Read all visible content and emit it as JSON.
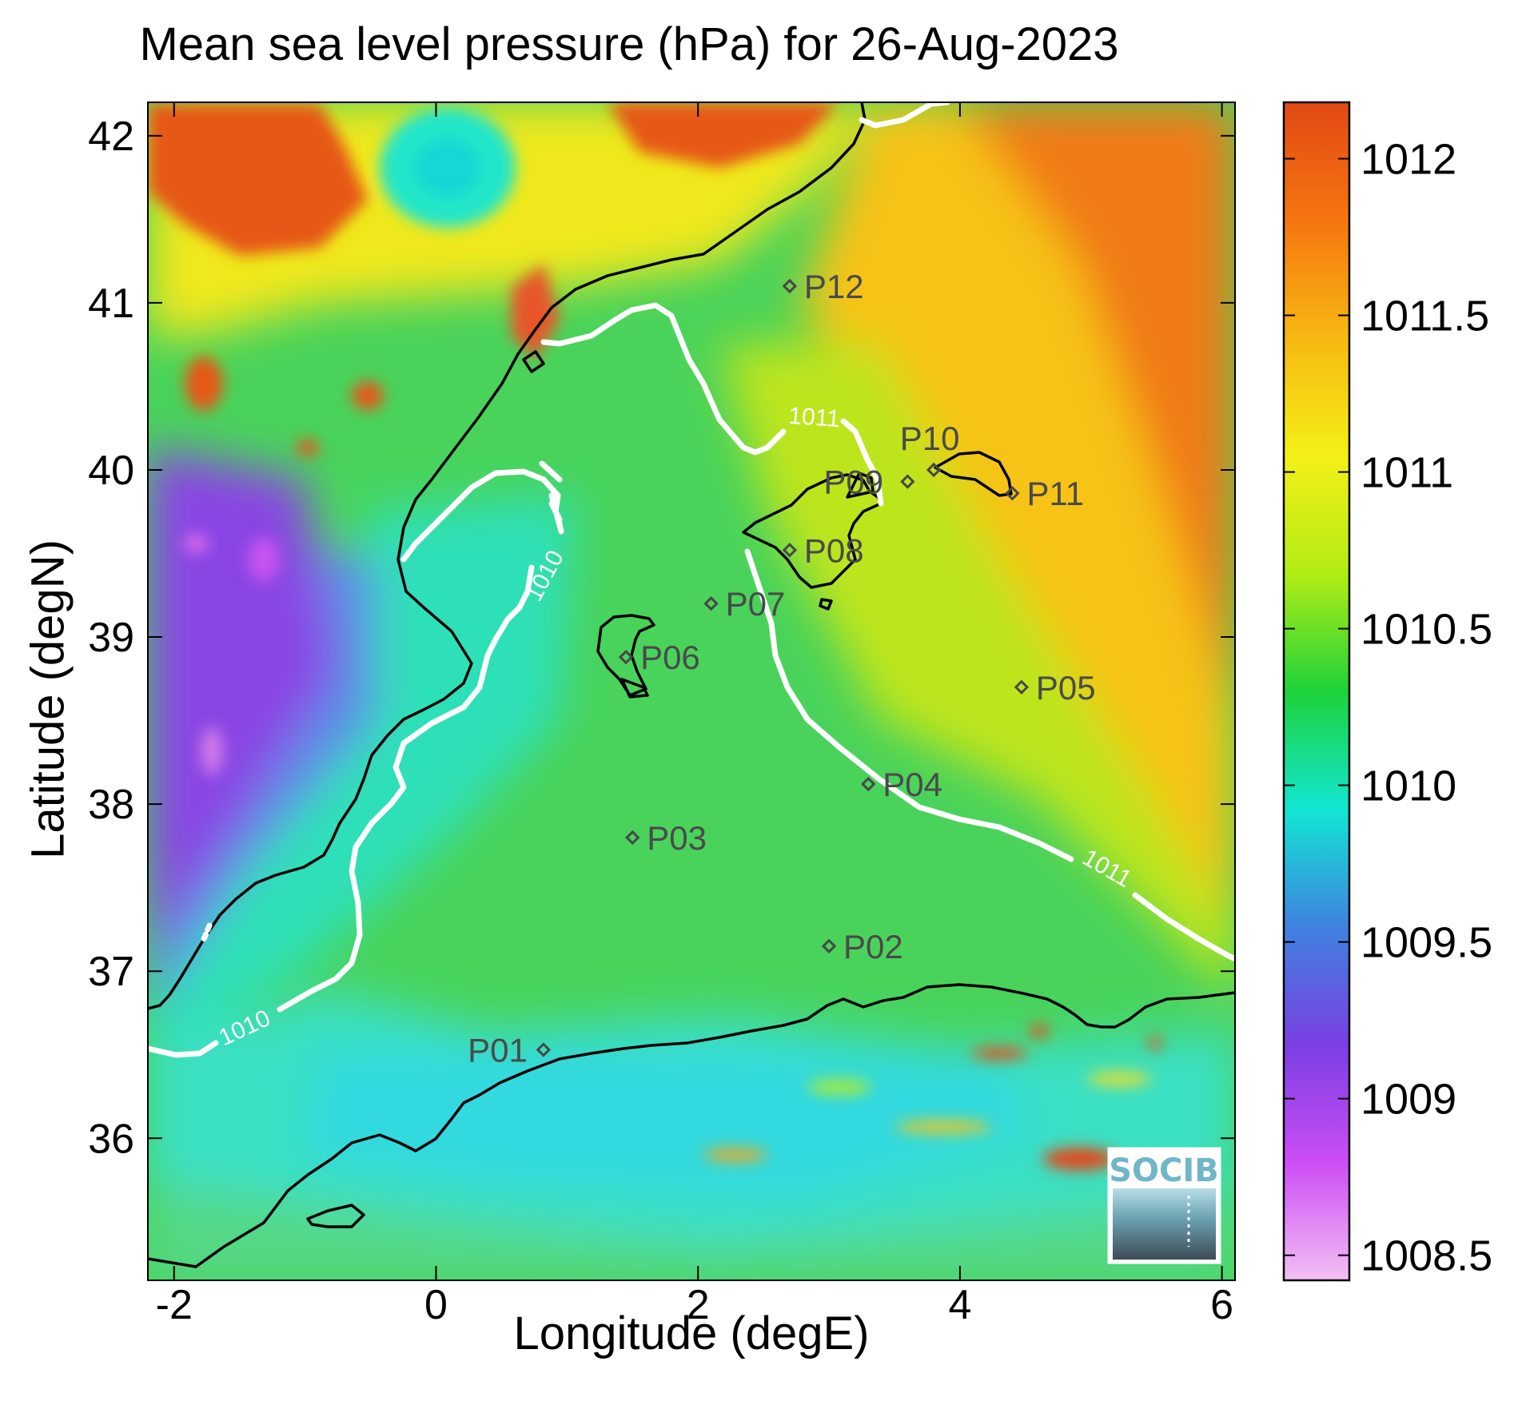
{
  "map": {
    "title": "Mean sea level pressure (hPa) for 26-Aug-2023",
    "xlabel": "Longitude (degE)",
    "ylabel": "Latitude (degN)",
    "lon_range": [
      -2.2,
      6.1
    ],
    "lat_range": [
      35.15,
      42.2
    ],
    "lon_ticks": [
      "-2",
      "0",
      "2",
      "4",
      "6"
    ],
    "lat_ticks": [
      "36",
      "37",
      "38",
      "39",
      "40",
      "41",
      "42"
    ],
    "colorbar": {
      "range": [
        1008.42,
        1012.18
      ],
      "tick_labels": [
        "1008.5",
        "1009",
        "1009.5",
        "1010",
        "1010.5",
        "1011",
        "1011.5",
        "1012"
      ],
      "colors": [
        "#f3c0f3",
        "#cc4df5",
        "#7a3fe3",
        "#3f82e0",
        "#12e6d2",
        "#1ed23a",
        "#b2ec16",
        "#f4f017",
        "#f7b812",
        "#f57510",
        "#e14a14"
      ]
    },
    "contours": [
      {
        "level": "1010",
        "color": "#ffffff"
      },
      {
        "level": "1011",
        "color": "#ffffff"
      }
    ],
    "points": [
      {
        "label": "P01",
        "lon": 0.82,
        "lat": 36.53
      },
      {
        "label": "P02",
        "lon": 3.0,
        "lat": 37.15
      },
      {
        "label": "P03",
        "lon": 1.5,
        "lat": 37.8
      },
      {
        "label": "P04",
        "lon": 3.3,
        "lat": 38.12
      },
      {
        "label": "P05",
        "lon": 4.47,
        "lat": 38.7
      },
      {
        "label": "P06",
        "lon": 1.45,
        "lat": 38.88
      },
      {
        "label": "P07",
        "lon": 2.1,
        "lat": 39.2
      },
      {
        "label": "P08",
        "lon": 2.7,
        "lat": 39.52
      },
      {
        "label": "P09",
        "lon": 3.6,
        "lat": 39.93
      },
      {
        "label": "P10",
        "lon": 3.8,
        "lat": 40.0
      },
      {
        "label": "P11",
        "lon": 4.4,
        "lat": 39.86
      },
      {
        "label": "P12",
        "lon": 2.7,
        "lat": 41.1
      }
    ],
    "logo": {
      "text": "SOCIB"
    }
  }
}
